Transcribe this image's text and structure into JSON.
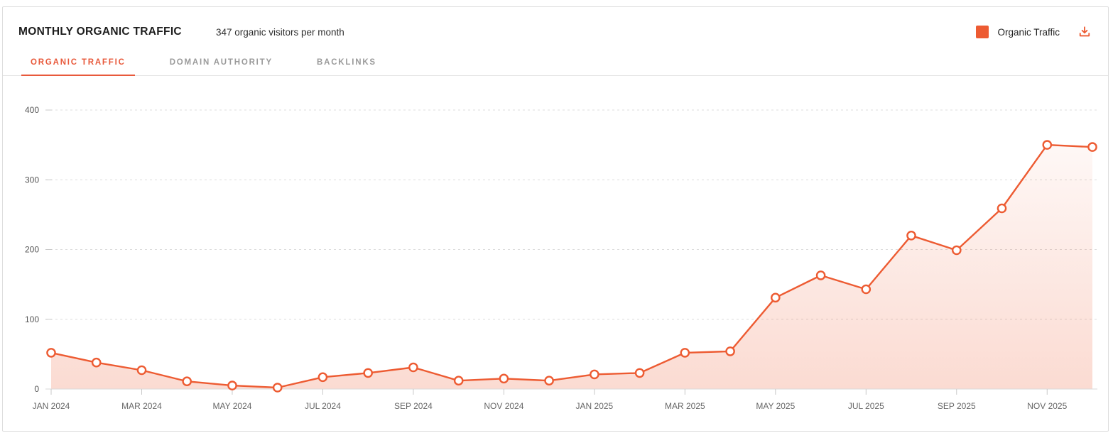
{
  "header": {
    "title": "MONTHLY ORGANIC TRAFFIC",
    "subtitle": "347 organic visitors per month"
  },
  "tabs": [
    {
      "label": "ORGANIC TRAFFIC",
      "active": true
    },
    {
      "label": "DOMAIN AUTHORITY",
      "active": false
    },
    {
      "label": "BACKLINKS",
      "active": false
    }
  ],
  "legend": {
    "label": "Organic Traffic",
    "swatch_color": "#ED5B32"
  },
  "colors": {
    "accent": "#ED5B32",
    "grid": "#dcdcdc",
    "axis": "#d8d8d8",
    "tick": "#c8c8c8",
    "y_label": "#555555",
    "x_label": "#666666",
    "area_top": "rgba(237,91,50,0.02)",
    "area_bottom": "rgba(237,91,50,0.22)"
  },
  "chart_data": {
    "type": "area",
    "title": "Monthly Organic Traffic",
    "series_name": "Organic Traffic",
    "categories": [
      "JAN 2024",
      "FEB 2024",
      "MAR 2024",
      "APR 2024",
      "MAY 2024",
      "JUN 2024",
      "JUL 2024",
      "AUG 2024",
      "SEP 2024",
      "OCT 2024",
      "NOV 2024",
      "DEC 2024",
      "JAN 2025",
      "FEB 2025",
      "MAR 2025",
      "APR 2025",
      "MAY 2025",
      "JUN 2025",
      "JUL 2025",
      "AUG 2025",
      "SEP 2025",
      "OCT 2025",
      "NOV 2025",
      "DEC 2025"
    ],
    "values": [
      52,
      38,
      27,
      11,
      5,
      2,
      17,
      23,
      31,
      12,
      15,
      12,
      21,
      23,
      52,
      54,
      131,
      163,
      143,
      220,
      199,
      259,
      350,
      347
    ],
    "x_tick_labels": [
      "JAN 2024",
      "MAR 2024",
      "MAY 2024",
      "JUL 2024",
      "SEP 2024",
      "NOV 2024",
      "JAN 2025",
      "MAR 2025",
      "MAY 2025",
      "JUL 2025",
      "SEP 2025",
      "NOV 2025"
    ],
    "x_tick_every": 2,
    "y_ticks": [
      0,
      100,
      200,
      300,
      400
    ],
    "ylim": [
      0,
      400
    ],
    "xlabel": "",
    "ylabel": "",
    "grid": "dashed-horizontal",
    "legend_position": "top-right",
    "marker": "circle-open"
  }
}
